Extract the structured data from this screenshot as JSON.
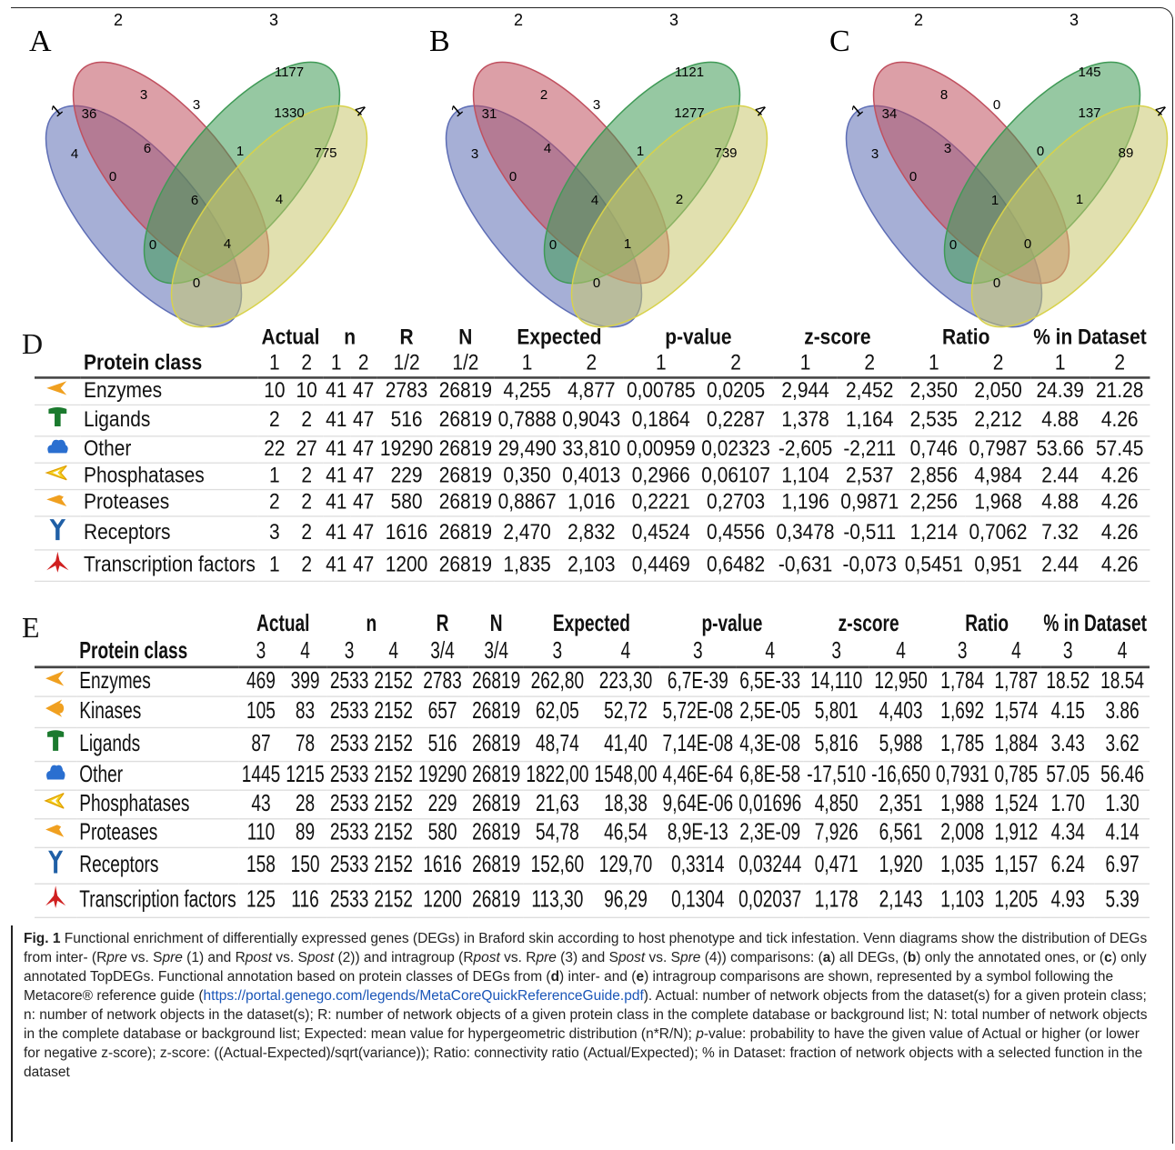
{
  "venn": {
    "panels": [
      {
        "letter": "A",
        "set_labels": [
          "1",
          "2",
          "3",
          "4"
        ],
        "counts": {
          "only1": "4",
          "only2": "3",
          "only3": "1177",
          "only4": "775",
          "s12": "36",
          "s23": "3",
          "s34": "1330",
          "s13": "0",
          "s24": "4",
          "s14": "0",
          "s123": "6",
          "s234": "1",
          "s134": "0",
          "s124": "4",
          "s1234": "6",
          "s_bottom": "0"
        }
      },
      {
        "letter": "B",
        "set_labels": [
          "1",
          "2",
          "3",
          "4"
        ],
        "counts": {
          "only1": "3",
          "only2": "2",
          "only3": "1121",
          "only4": "739",
          "s12": "31",
          "s23": "3",
          "s34": "1277",
          "s13": "0",
          "s24": "2",
          "s14": "0",
          "s123": "4",
          "s234": "1",
          "s134": "0",
          "s124": "1",
          "s1234": "4",
          "s_bottom": "0"
        }
      },
      {
        "letter": "C",
        "set_labels": [
          "1",
          "2",
          "3",
          "4"
        ],
        "counts": {
          "only1": "3",
          "only2": "8",
          "only3": "145",
          "only4": "89",
          "s12": "34",
          "s23": "0",
          "s34": "137",
          "s13": "0",
          "s24": "1",
          "s14": "0",
          "s123": "3",
          "s234": "0",
          "s134": "0",
          "s124": "0",
          "s1234": "1",
          "s_bottom": "0"
        }
      }
    ],
    "colors": {
      "set1": "#5d6db5",
      "set2": "#c0505f",
      "set3": "#3f9a56",
      "set4": "#c9c66e",
      "edge4": "#d8d24a"
    }
  },
  "table_d": {
    "letter": "D",
    "groups": [
      "Actual",
      "n",
      "R",
      "N",
      "Expected",
      "p-value",
      "z-score",
      "Ratio",
      "% in Dataset"
    ],
    "protein_class_header": "Protein class",
    "subheaders": [
      "1",
      "2",
      "1",
      "2",
      "1/2",
      "1/2",
      "1",
      "2",
      "1",
      "2",
      "1",
      "2",
      "1",
      "2",
      "1",
      "2"
    ],
    "rows": [
      {
        "icon": "enzyme-icon",
        "name": "Enzymes",
        "cells": [
          "10",
          "10",
          "41",
          "47",
          "2783",
          "26819",
          "4,255",
          "4,877",
          "0,00785",
          "0,0205",
          "2,944",
          "2,452",
          "2,350",
          "2,050",
          "24.39",
          "21.28"
        ]
      },
      {
        "icon": "ligand-icon",
        "name": "Ligands",
        "cells": [
          "2",
          "2",
          "41",
          "47",
          "516",
          "26819",
          "0,7888",
          "0,9043",
          "0,1864",
          "0,2287",
          "1,378",
          "1,164",
          "2,535",
          "2,212",
          "4.88",
          "4.26"
        ]
      },
      {
        "icon": "other-icon",
        "name": "Other",
        "cells": [
          "22",
          "27",
          "41",
          "47",
          "19290",
          "26819",
          "29,490",
          "33,810",
          "0,00959",
          "0,02323",
          "-2,605",
          "-2,211",
          "0,746",
          "0,7987",
          "53.66",
          "57.45"
        ]
      },
      {
        "icon": "phosphatase-icon",
        "name": "Phosphatases",
        "cells": [
          "1",
          "2",
          "41",
          "47",
          "229",
          "26819",
          "0,350",
          "0,4013",
          "0,2966",
          "0,06107",
          "1,104",
          "2,537",
          "2,856",
          "4,984",
          "2.44",
          "4.26"
        ]
      },
      {
        "icon": "protease-icon",
        "name": "Proteases",
        "cells": [
          "2",
          "2",
          "41",
          "47",
          "580",
          "26819",
          "0,8867",
          "1,016",
          "0,2221",
          "0,2703",
          "1,196",
          "0,9871",
          "2,256",
          "1,968",
          "4.88",
          "4.26"
        ]
      },
      {
        "icon": "receptor-icon",
        "name": "Receptors",
        "cells": [
          "3",
          "2",
          "41",
          "47",
          "1616",
          "26819",
          "2,470",
          "2,832",
          "0,4524",
          "0,4556",
          "0,3478",
          "-0,511",
          "1,214",
          "0,7062",
          "7.32",
          "4.26"
        ]
      },
      {
        "icon": "transcription-factor-icon",
        "name": "Transcription factors",
        "cells": [
          "1",
          "2",
          "41",
          "47",
          "1200",
          "26819",
          "1,835",
          "2,103",
          "0,4469",
          "0,6482",
          "-0,631",
          "-0,073",
          "0,5451",
          "0,951",
          "2.44",
          "4.26"
        ]
      }
    ]
  },
  "table_e": {
    "letter": "E",
    "groups": [
      "Actual",
      "n",
      "R",
      "N",
      "Expected",
      "p-value",
      "z-score",
      "Ratio",
      "% in Dataset"
    ],
    "protein_class_header": "Protein class",
    "subheaders": [
      "3",
      "4",
      "3",
      "4",
      "3/4",
      "3/4",
      "3",
      "4",
      "3",
      "4",
      "3",
      "4",
      "3",
      "4",
      "3",
      "4"
    ],
    "rows": [
      {
        "icon": "enzyme-icon",
        "name": "Enzymes",
        "cells": [
          "469",
          "399",
          "2533",
          "2152",
          "2783",
          "26819",
          "262,80",
          "223,30",
          "6,7E-39",
          "6,5E-33",
          "14,110",
          "12,950",
          "1,784",
          "1,787",
          "18.52",
          "18.54"
        ]
      },
      {
        "icon": "kinase-icon",
        "name": "Kinases",
        "cells": [
          "105",
          "83",
          "2533",
          "2152",
          "657",
          "26819",
          "62,05",
          "52,72",
          "5,72E-08",
          "2,5E-05",
          "5,801",
          "4,403",
          "1,692",
          "1,574",
          "4.15",
          "3.86"
        ]
      },
      {
        "icon": "ligand-icon",
        "name": "Ligands",
        "cells": [
          "87",
          "78",
          "2533",
          "2152",
          "516",
          "26819",
          "48,74",
          "41,40",
          "7,14E-08",
          "4,3E-08",
          "5,816",
          "5,988",
          "1,785",
          "1,884",
          "3.43",
          "3.62"
        ]
      },
      {
        "icon": "other-icon",
        "name": "Other",
        "cells": [
          "1445",
          "1215",
          "2533",
          "2152",
          "19290",
          "26819",
          "1822,00",
          "1548,00",
          "4,46E-64",
          "6,8E-58",
          "-17,510",
          "-16,650",
          "0,7931",
          "0,785",
          "57.05",
          "56.46"
        ]
      },
      {
        "icon": "phosphatase-icon",
        "name": "Phosphatases",
        "cells": [
          "43",
          "28",
          "2533",
          "2152",
          "229",
          "26819",
          "21,63",
          "18,38",
          "9,64E-06",
          "0,01696",
          "4,850",
          "2,351",
          "1,988",
          "1,524",
          "1.70",
          "1.30"
        ]
      },
      {
        "icon": "protease-icon",
        "name": "Proteases",
        "cells": [
          "110",
          "89",
          "2533",
          "2152",
          "580",
          "26819",
          "54,78",
          "46,54",
          "8,9E-13",
          "2,3E-09",
          "7,926",
          "6,561",
          "2,008",
          "1,912",
          "4.34",
          "4.14"
        ]
      },
      {
        "icon": "receptor-icon",
        "name": "Receptors",
        "cells": [
          "158",
          "150",
          "2533",
          "2152",
          "1616",
          "26819",
          "152,60",
          "129,70",
          "0,3314",
          "0,03244",
          "0,471",
          "1,920",
          "1,035",
          "1,157",
          "6.24",
          "6.97"
        ]
      },
      {
        "icon": "transcription-factor-icon",
        "name": "Transcription factors",
        "cells": [
          "125",
          "116",
          "2533",
          "2152",
          "1200",
          "26819",
          "113,30",
          "96,29",
          "0,1304",
          "0,02037",
          "1,178",
          "2,143",
          "1,103",
          "1,205",
          "4.93",
          "5.39"
        ]
      }
    ]
  },
  "caption": {
    "label": "Fig. 1",
    "text_1": " Functional enrichment of differentially expressed genes (DEGs) in Braford skin according to host phenotype and tick infestation. Venn diagrams show the distribution of DEGs from inter- (R",
    "pre": "pre",
    "vs1": " vs. S",
    "pre2": "pre",
    "p1": " (1) and R",
    "post": "post",
    "vs2": " vs. S",
    "post2": "post",
    "p2": " (2)) and intragroup (R",
    "post3": "post",
    "vs3": " vs. R",
    "pre3": "pre",
    "p3": " (3) and S",
    "post4": "post",
    "vs4": " vs. S",
    "pre4": "pre",
    "p4": " (4)) comparisons: (",
    "a": "a",
    "p5": ") all DEGs, (",
    "b": "b",
    "p6": ") only the annotated ones, or (",
    "c": "c",
    "p7": ") only annotated TopDEGs. Functional annotation based on protein classes of DEGs from (",
    "d": "d",
    "p8": ") inter- and (",
    "e": "e",
    "p9": ") intragroup comparisons are shown, represented by a symbol following the Metacore® reference guide (",
    "link": "https://portal.genego.com/legends/MetaCoreQuickReferenceGuide.pdf",
    "p10": "). Actual: number of network objects from the dataset(s) for a given protein class; n: number of network objects in the dataset(s); R: number of network objects of a given protein class in the complete database or background list; N: total number of network objects in the complete database or background list; Expected: mean value for hypergeometric distribution (n*R/N); ",
    "pval": "p",
    "p11": "-value: probability to have the given value of Actual or higher (or lower for negative z-score); z-score: ((Actual-Expected)/sqrt(variance)); Ratio: connectivity ratio (Actual/Expected); % in Dataset: fraction of network objects with a selected function in the dataset"
  }
}
